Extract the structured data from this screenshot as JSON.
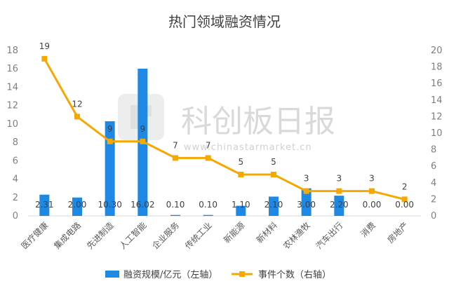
{
  "watermark": {
    "brand": "科创板日报",
    "url": "www.chinastarmarket.cn"
  },
  "chart_data": {
    "type": "bar",
    "title": "热门领域融资情况",
    "categories": [
      "医疗健康",
      "集成电路",
      "先进制造",
      "人工智能",
      "企业服务",
      "传统工业",
      "新能源",
      "新材料",
      "农林渔牧",
      "汽车出行",
      "消费",
      "房地产"
    ],
    "left_axis": {
      "min": 0,
      "max": 18,
      "step": 2,
      "ticks": [
        "0",
        "2",
        "4",
        "6",
        "8",
        "10",
        "12",
        "14",
        "16",
        "18"
      ]
    },
    "right_axis": {
      "min": 0,
      "max": 20,
      "step": 2,
      "ticks": [
        "0",
        "2",
        "4",
        "6",
        "8",
        "10",
        "12",
        "14",
        "16",
        "18",
        "20"
      ]
    },
    "grid": false,
    "legend_position": "bottom",
    "series": [
      {
        "name": "融资规模/亿元（左轴）",
        "type": "bar",
        "axis": "left",
        "color": "#1e88e5",
        "values": [
          2.31,
          2.0,
          10.3,
          16.02,
          0.1,
          0.1,
          1.1,
          2.1,
          3.0,
          2.2,
          0.0,
          0.0
        ],
        "labels": [
          "2.31",
          "2.00",
          "10.30",
          "16.02",
          "0.10",
          "0.10",
          "1.10",
          "2.10",
          "3.00",
          "2.20",
          "0.00",
          "0.00"
        ]
      },
      {
        "name": "事件个数（右轴）",
        "type": "line",
        "axis": "right",
        "color": "#f5a800",
        "values": [
          19,
          12,
          9,
          9,
          7,
          7,
          5,
          5,
          3,
          3,
          3,
          2
        ],
        "labels": [
          "19",
          "12",
          "9",
          "9",
          "7",
          "7",
          "5",
          "5",
          "3",
          "3",
          "3",
          "2"
        ]
      }
    ]
  }
}
